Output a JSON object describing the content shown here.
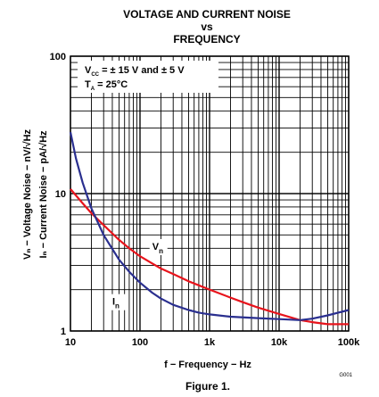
{
  "chart_data": {
    "type": "line",
    "title_lines": [
      "VOLTAGE AND CURRENT NOISE",
      "vs",
      "FREQUENCY"
    ],
    "xlabel": "f − Frequency − Hz",
    "ylabel_voltage": "Vₙ − Voltage Noise − nV/√Hz",
    "ylabel_current": "Iₙ − Current Noise − pA/√Hz",
    "xscale": "log",
    "yscale": "log",
    "xlim": [
      10,
      100000
    ],
    "ylim": [
      1,
      100
    ],
    "x_ticks": [
      {
        "value": 10,
        "label": "10"
      },
      {
        "value": 100,
        "label": "100"
      },
      {
        "value": 1000,
        "label": "1k"
      },
      {
        "value": 10000,
        "label": "10k"
      },
      {
        "value": 100000,
        "label": "100k"
      }
    ],
    "y_ticks": [
      {
        "value": 1,
        "label": "1"
      },
      {
        "value": 10,
        "label": "10"
      },
      {
        "value": 100,
        "label": "100"
      }
    ],
    "grid": true,
    "conditions": [
      "V_CC = ± 15 V and ± 5 V",
      "T_A = 25°C"
    ],
    "series": [
      {
        "name": "Vn",
        "color": "#e8141c",
        "x": [
          10,
          15,
          20,
          30,
          50,
          70,
          100,
          150,
          200,
          300,
          500,
          700,
          1000,
          2000,
          3000,
          5000,
          10000,
          20000,
          30000,
          50000,
          100000
        ],
        "y": [
          10.8,
          8.5,
          7.2,
          5.9,
          4.6,
          4.0,
          3.5,
          3.1,
          2.85,
          2.6,
          2.3,
          2.15,
          2.0,
          1.75,
          1.62,
          1.48,
          1.33,
          1.2,
          1.16,
          1.12,
          1.12
        ]
      },
      {
        "name": "In",
        "color": "#2a2f8f",
        "x": [
          10,
          12,
          15,
          20,
          30,
          50,
          70,
          100,
          150,
          200,
          300,
          500,
          700,
          1000,
          2000,
          5000,
          10000,
          20000,
          30000,
          50000,
          100000
        ],
        "y": [
          28,
          18,
          12,
          7.8,
          5.0,
          3.3,
          2.7,
          2.25,
          1.9,
          1.72,
          1.55,
          1.42,
          1.36,
          1.32,
          1.27,
          1.24,
          1.22,
          1.2,
          1.23,
          1.3,
          1.42
        ]
      }
    ],
    "annotations": [
      {
        "text": "V",
        "sub": "n",
        "x": 150,
        "y": 3.9
      },
      {
        "text": "I",
        "sub": "n",
        "x": 40,
        "y": 1.55
      }
    ]
  },
  "footer": {
    "code": "G001",
    "figure_label": "Figure 1."
  }
}
